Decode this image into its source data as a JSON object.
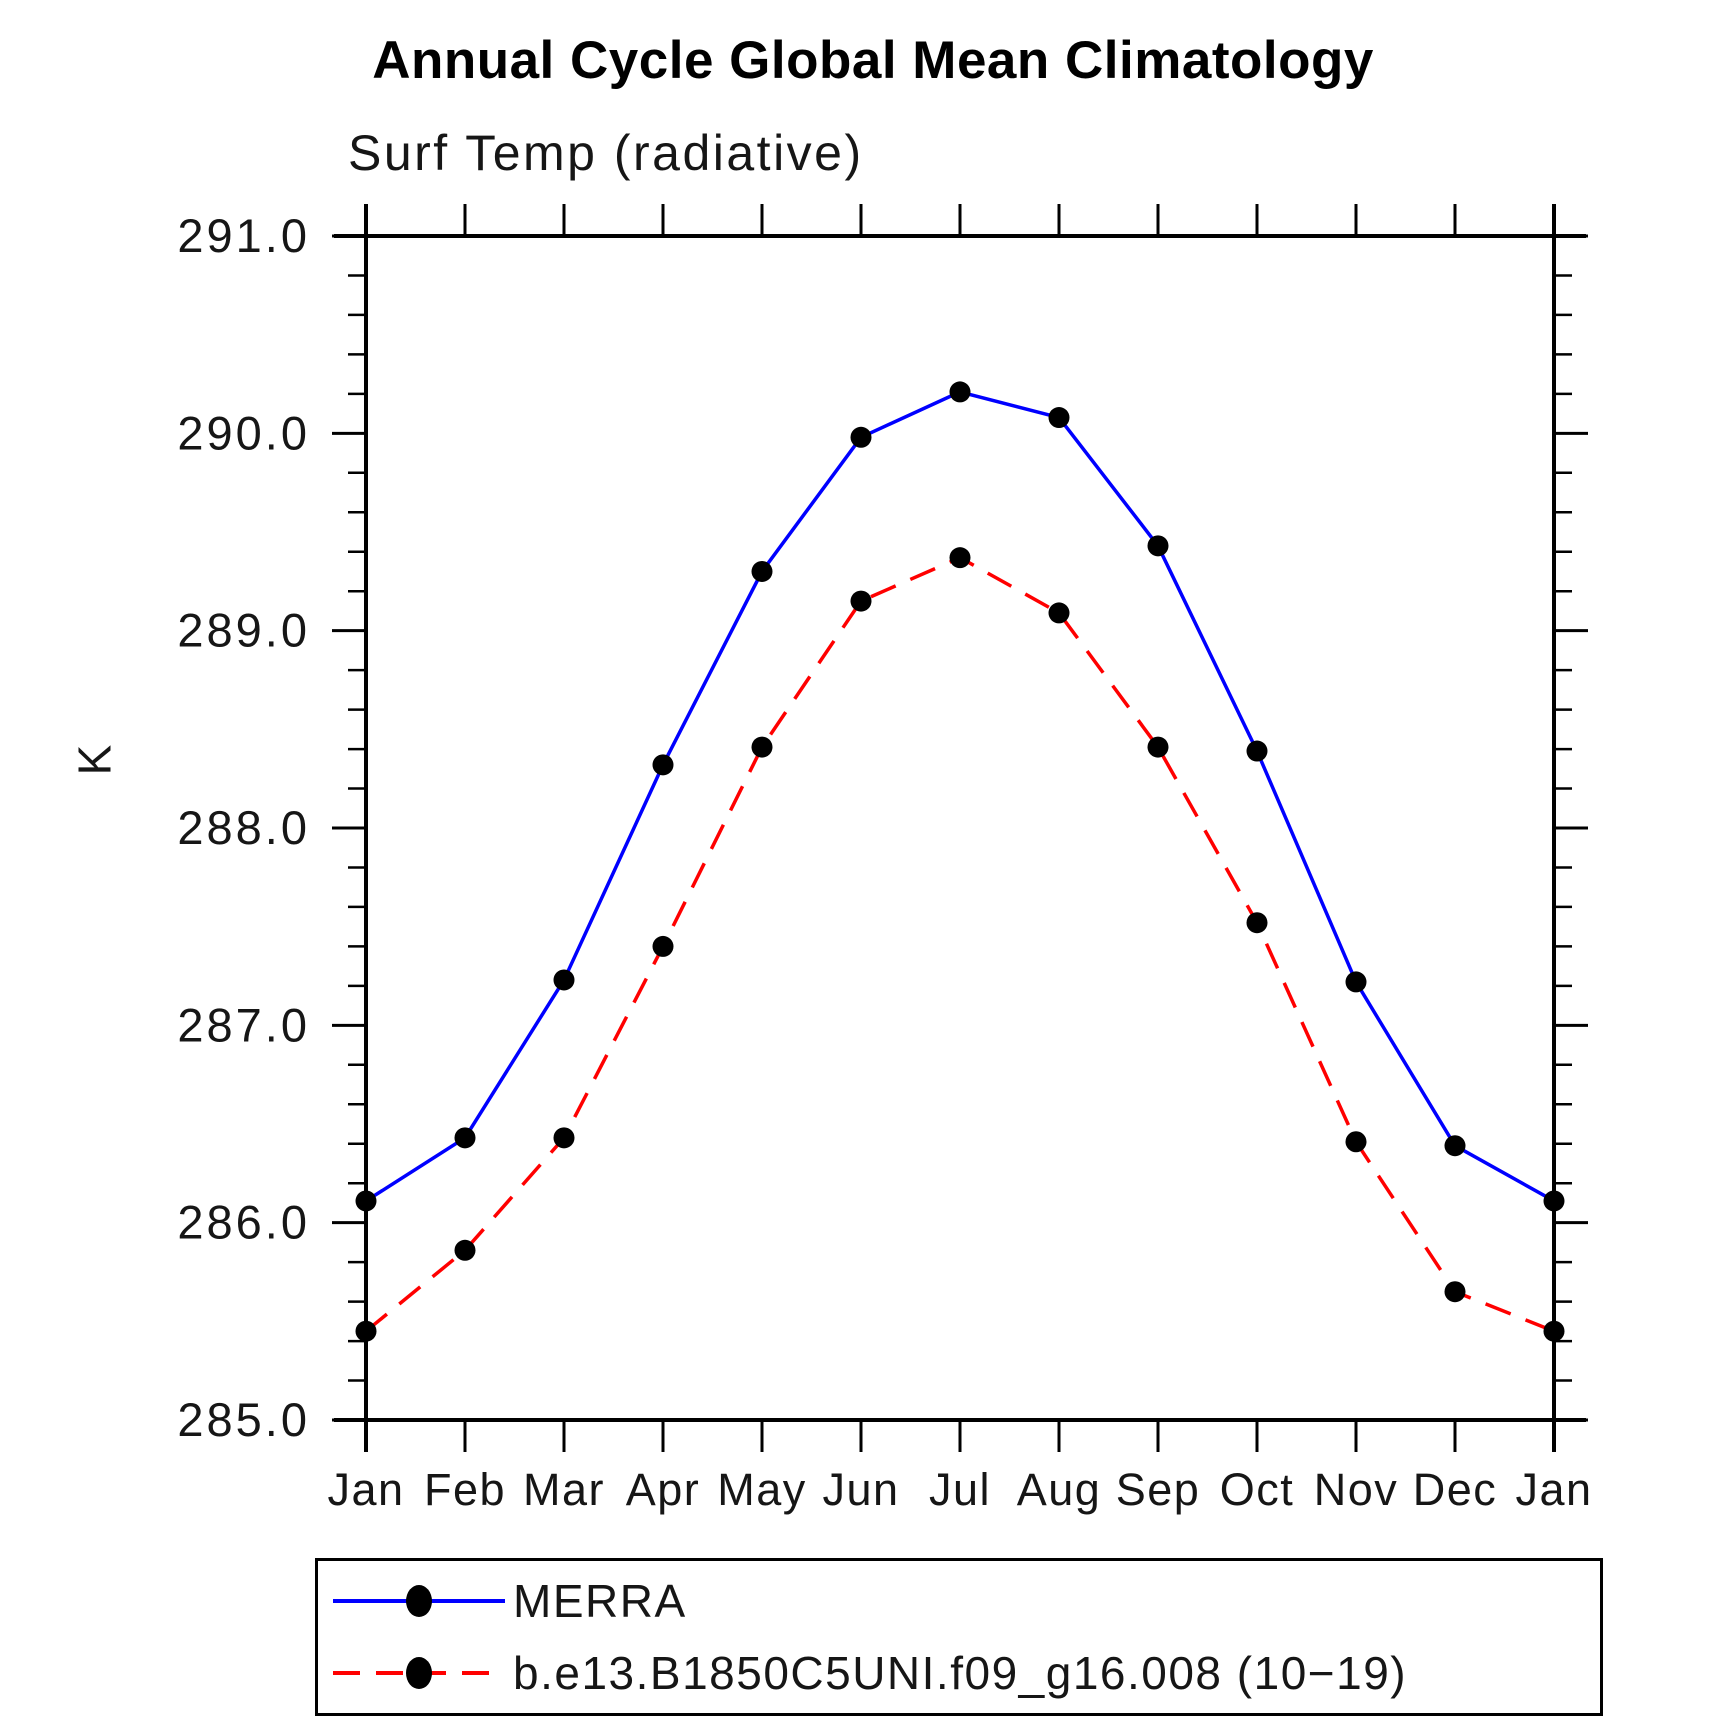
{
  "title": "Annual Cycle Global Mean Climatology",
  "chart_data": {
    "type": "line",
    "title": "Annual Cycle Global Mean Climatology",
    "subtitle": "Surf Temp (radiative)",
    "ylabel": "K",
    "xlabel": "",
    "x_tick_labels": [
      "Jan",
      "Feb",
      "Mar",
      "Apr",
      "May",
      "Jun",
      "Jul",
      "Aug",
      "Sep",
      "Oct",
      "Nov",
      "Dec",
      "Jan"
    ],
    "y_tick_labels": [
      "291.0",
      "290.0",
      "289.0",
      "288.0",
      "287.0",
      "286.0",
      "285.0"
    ],
    "ylim": [
      285.0,
      291.0
    ],
    "y_major_step": 1.0,
    "y_minor_step": 0.2,
    "grid": "off",
    "legend_position": "bottom-box",
    "axis_color": "#000000",
    "marker_color": "#000000",
    "series": [
      {
        "name": "MERRA",
        "color": "#0000ff",
        "style": "solid",
        "marker": "circle",
        "values": [
          286.11,
          286.43,
          287.23,
          288.32,
          289.3,
          289.98,
          290.21,
          290.08,
          289.43,
          288.39,
          287.22,
          286.39,
          286.11
        ]
      },
      {
        "name": "b.e13.B1850C5UNI.f09_g16.008 (10−19)",
        "color": "#ff0000",
        "style": "dashed",
        "marker": "circle",
        "values": [
          285.45,
          285.86,
          286.43,
          287.4,
          288.41,
          289.15,
          289.37,
          289.09,
          288.41,
          287.52,
          286.41,
          285.65,
          285.45
        ]
      }
    ]
  }
}
